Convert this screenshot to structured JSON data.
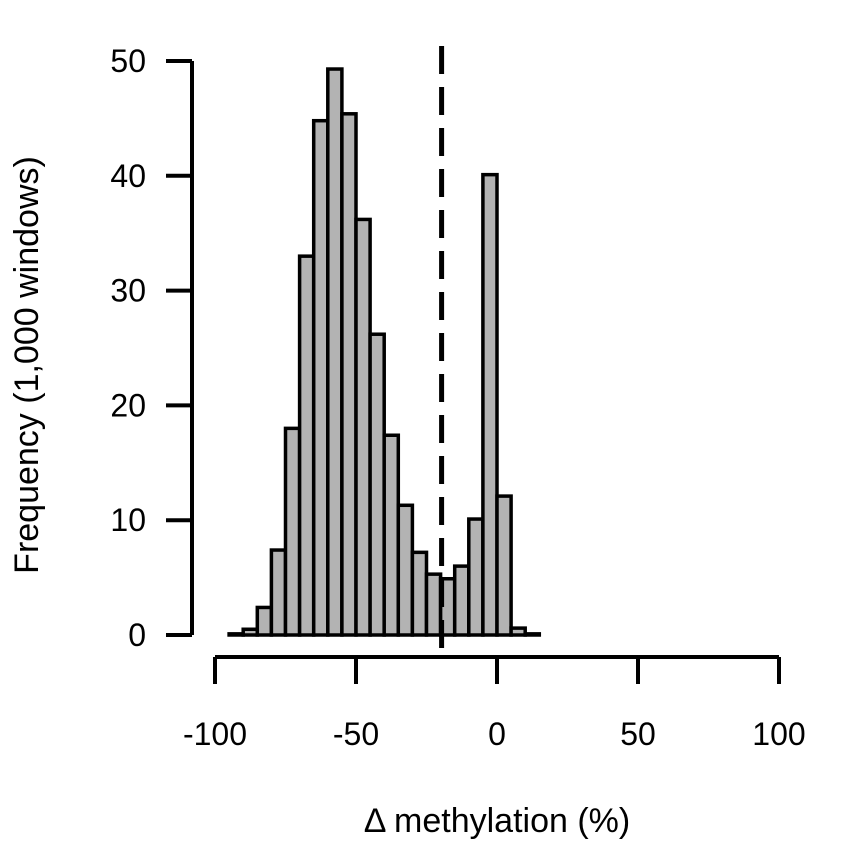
{
  "chart_data": {
    "type": "bar",
    "title": "",
    "xlabel": "Δ methylation (%)",
    "ylabel": "Frequency (1,000 windows)",
    "xlim": [
      -100,
      100
    ],
    "ylim": [
      0,
      50
    ],
    "x_ticks": [
      -100,
      -50,
      0,
      50,
      100
    ],
    "y_ticks": [
      0,
      10,
      20,
      30,
      40,
      50
    ],
    "x_tick_labels": [
      "-100",
      "-50",
      "0",
      "50",
      "100"
    ],
    "y_tick_labels": [
      "0",
      "10",
      "20",
      "30",
      "40",
      "50"
    ],
    "bin_width": 5,
    "bins": [
      {
        "start": -100,
        "end": -95,
        "value": 0.0
      },
      {
        "start": -95,
        "end": -90,
        "value": 0.1
      },
      {
        "start": -90,
        "end": -85,
        "value": 0.5
      },
      {
        "start": -85,
        "end": -80,
        "value": 2.4
      },
      {
        "start": -80,
        "end": -75,
        "value": 7.4
      },
      {
        "start": -75,
        "end": -70,
        "value": 18.0
      },
      {
        "start": -70,
        "end": -65,
        "value": 33.0
      },
      {
        "start": -65,
        "end": -60,
        "value": 44.8
      },
      {
        "start": -60,
        "end": -55,
        "value": 49.3
      },
      {
        "start": -55,
        "end": -50,
        "value": 45.4
      },
      {
        "start": -50,
        "end": -45,
        "value": 36.2
      },
      {
        "start": -45,
        "end": -40,
        "value": 26.2
      },
      {
        "start": -40,
        "end": -35,
        "value": 17.4
      },
      {
        "start": -35,
        "end": -30,
        "value": 11.3
      },
      {
        "start": -30,
        "end": -25,
        "value": 7.2
      },
      {
        "start": -25,
        "end": -20,
        "value": 5.3
      },
      {
        "start": -20,
        "end": -15,
        "value": 4.9
      },
      {
        "start": -15,
        "end": -10,
        "value": 6.0
      },
      {
        "start": -10,
        "end": -5,
        "value": 10.1
      },
      {
        "start": -5,
        "end": 0,
        "value": 40.1
      },
      {
        "start": 0,
        "end": 5,
        "value": 12.1
      },
      {
        "start": 5,
        "end": 10,
        "value": 0.6
      },
      {
        "start": 10,
        "end": 15,
        "value": 0.1
      },
      {
        "start": 15,
        "end": 100,
        "value": 0.0
      }
    ],
    "reference_line": {
      "x": -20,
      "style": "dashed"
    },
    "bar_fill": "#b3b3b3",
    "bar_stroke": "#000000",
    "grid": false,
    "legend": "none"
  }
}
